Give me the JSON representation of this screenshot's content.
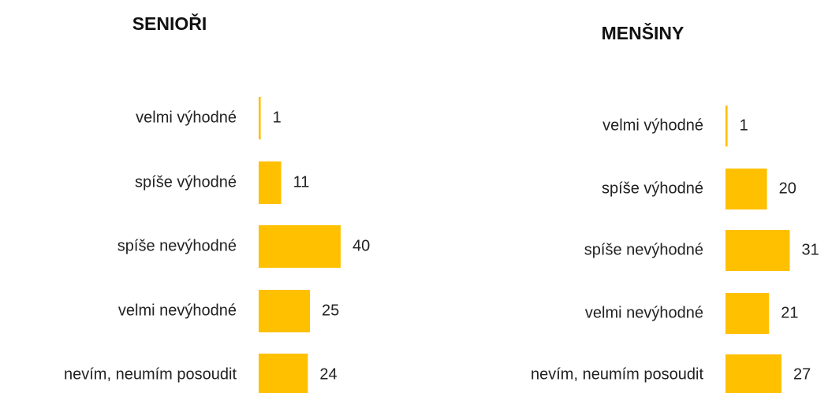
{
  "chart_data": [
    {
      "type": "bar",
      "title": "SENIOŘI",
      "categories": [
        "velmi výhodné",
        "spíše výhodné",
        "spíše nevýhodné",
        "velmi nevýhodné",
        "nevím, neumím posoudit"
      ],
      "values": [
        1,
        11,
        40,
        25,
        24
      ],
      "color": "#ffc000"
    },
    {
      "type": "bar",
      "title": "MENŠINY",
      "categories": [
        "velmi výhodné",
        "spíše výhodné",
        "spíše nevýhodné",
        "velmi nevýhodné",
        "nevím, neumím posoudit"
      ],
      "values": [
        1,
        20,
        31,
        21,
        27
      ],
      "color": "#ffc000"
    }
  ]
}
